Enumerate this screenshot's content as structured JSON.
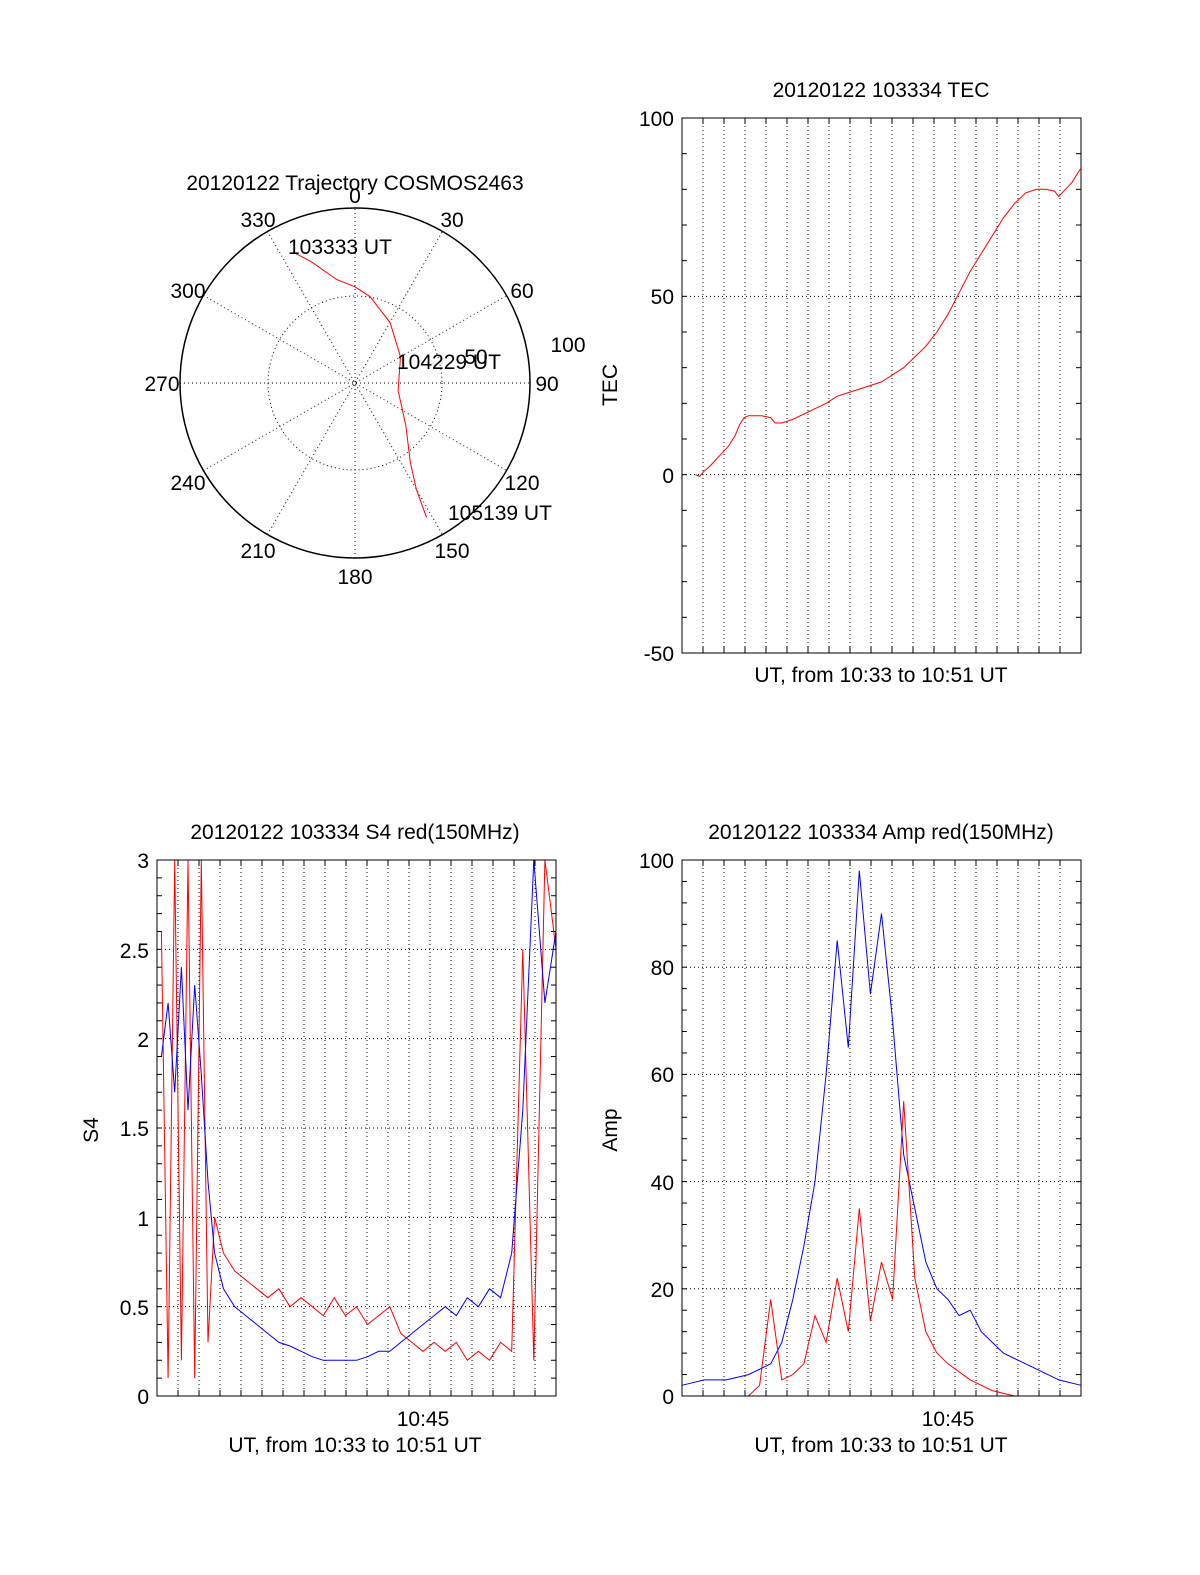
{
  "colors": {
    "red": "#ff0000",
    "blue": "#0000ff",
    "ink": "#000000",
    "background": "#ffffff"
  },
  "chart_data": [
    {
      "type": "polar",
      "title": "20120122 Trajectory COSMOS2463",
      "azimuth_labels": [
        "0",
        "30",
        "60",
        "90",
        "120",
        "150",
        "180",
        "210",
        "240",
        "270",
        "300",
        "330"
      ],
      "radial_labels": [
        "50",
        "100"
      ],
      "start_label": "103333 UT",
      "mid_label": "104229 UT",
      "end_label": "105139 UT",
      "series": [
        {
          "color": "red",
          "points": [
            [
              335,
              82
            ],
            [
              340,
              74
            ],
            [
              350,
              60
            ],
            [
              0,
              55
            ],
            [
              10,
              50
            ],
            [
              30,
              40
            ],
            [
              60,
              30
            ],
            [
              100,
              25
            ],
            [
              130,
              38
            ],
            [
              145,
              55
            ],
            [
              150,
              70
            ],
            [
              152,
              87
            ]
          ]
        }
      ]
    },
    {
      "type": "line",
      "title": "20120122 103334 TEC",
      "xlabel": "UT, from 10:33 to 10:51 UT",
      "ylabel": "TEC",
      "x_range_minutes": [
        0,
        18
      ],
      "ylim": [
        -50,
        100
      ],
      "yticks": [
        "100",
        "50",
        "0",
        "-50"
      ],
      "grid": true,
      "series": [
        {
          "color": "red",
          "x": [
            0.6,
            0.8,
            1.0,
            1.2,
            1.5,
            1.8,
            2.1,
            2.4,
            2.6,
            2.8,
            3.0,
            3.2,
            3.6,
            4.0,
            4.2,
            4.5,
            5.0,
            5.5,
            6.0,
            6.5,
            7.0,
            7.5,
            8.0,
            8.5,
            9.0,
            9.5,
            10.0,
            10.5,
            11.0,
            11.5,
            12.0,
            12.5,
            13.0,
            13.5,
            14.0,
            14.5,
            15.0,
            15.5,
            16.0,
            16.4,
            16.8,
            17.0,
            17.3,
            17.6,
            18.0
          ],
          "y": [
            0,
            -0.5,
            1,
            2,
            4,
            6,
            8,
            11,
            14,
            16,
            16.5,
            16.5,
            16.5,
            16,
            14.5,
            14.5,
            15.5,
            17,
            18.5,
            20,
            22,
            23,
            24,
            25,
            26,
            28,
            30,
            33,
            36,
            40,
            45,
            51,
            57,
            62,
            67,
            72,
            76,
            79,
            80,
            80,
            79.5,
            78,
            80,
            82,
            86
          ]
        }
      ]
    },
    {
      "type": "line",
      "title": "20120122 103334 S4 red(150MHz)",
      "xlabel": "UT, from 10:33 to 10:51 UT",
      "ylabel": "S4",
      "x_range_minutes": [
        0,
        18
      ],
      "ylim": [
        0,
        3
      ],
      "yticks": [
        "3",
        "2.5",
        "2",
        "1.5",
        "1",
        "0.5",
        "0"
      ],
      "xticks": [
        "10:45"
      ],
      "grid": true,
      "series": [
        {
          "color": "red",
          "x": [
            0.2,
            0.5,
            0.8,
            1.1,
            1.4,
            1.7,
            2.0,
            2.3,
            2.6,
            3.0,
            3.5,
            4.0,
            4.5,
            5.0,
            5.5,
            6.0,
            6.5,
            7.0,
            7.5,
            8.0,
            8.5,
            9.0,
            9.5,
            10.0,
            10.5,
            11.0,
            11.5,
            12.0,
            12.5,
            13.0,
            13.5,
            14.0,
            14.5,
            15.0,
            15.5,
            16.0,
            16.5,
            17.0,
            17.5,
            18.0
          ],
          "y": [
            2.6,
            0.1,
            3.0,
            0.2,
            3.0,
            0.1,
            3.0,
            0.3,
            1.0,
            0.8,
            0.7,
            0.65,
            0.6,
            0.55,
            0.6,
            0.5,
            0.55,
            0.5,
            0.45,
            0.55,
            0.45,
            0.5,
            0.4,
            0.45,
            0.5,
            0.35,
            0.3,
            0.25,
            0.3,
            0.25,
            0.3,
            0.2,
            0.25,
            0.2,
            0.3,
            0.25,
            2.5,
            0.2,
            3.0,
            2.5
          ]
        },
        {
          "color": "blue",
          "x": [
            0.2,
            0.5,
            0.8,
            1.1,
            1.4,
            1.7,
            2.0,
            2.3,
            2.6,
            3.0,
            3.5,
            4.0,
            4.5,
            5.0,
            5.5,
            6.0,
            6.5,
            7.0,
            7.5,
            8.0,
            8.5,
            9.0,
            9.5,
            10.0,
            10.5,
            11.0,
            11.5,
            12.0,
            12.5,
            13.0,
            13.5,
            14.0,
            14.5,
            15.0,
            15.5,
            16.0,
            16.5,
            17.0,
            17.5,
            18.0
          ],
          "y": [
            1.9,
            2.2,
            1.7,
            2.4,
            1.6,
            2.3,
            1.8,
            1.2,
            0.8,
            0.6,
            0.5,
            0.45,
            0.4,
            0.35,
            0.3,
            0.28,
            0.25,
            0.22,
            0.2,
            0.2,
            0.2,
            0.2,
            0.22,
            0.25,
            0.25,
            0.3,
            0.35,
            0.4,
            0.45,
            0.5,
            0.45,
            0.55,
            0.5,
            0.6,
            0.55,
            0.8,
            1.6,
            3.0,
            2.2,
            2.6
          ]
        }
      ]
    },
    {
      "type": "line",
      "title": "20120122 103334 Amp red(150MHz)",
      "xlabel": "UT, from 10:33 to 10:51 UT",
      "ylabel": "Amp",
      "x_range_minutes": [
        0,
        18
      ],
      "ylim": [
        0,
        100
      ],
      "yticks": [
        "100",
        "80",
        "60",
        "40",
        "20",
        "0"
      ],
      "xticks": [
        "10:45"
      ],
      "grid": true,
      "series": [
        {
          "color": "blue",
          "x": [
            0,
            1,
            2,
            3,
            4,
            4.5,
            5,
            5.5,
            6,
            6.5,
            7,
            7.5,
            8,
            8.5,
            9,
            9.5,
            10,
            10.5,
            11,
            11.5,
            12,
            12.5,
            13,
            13.5,
            14,
            14.5,
            15,
            15.5,
            16,
            16.5,
            17,
            18
          ],
          "y": [
            2,
            3,
            3,
            4,
            6,
            10,
            18,
            28,
            40,
            60,
            85,
            65,
            98,
            75,
            90,
            70,
            45,
            35,
            25,
            20,
            18,
            15,
            16,
            12,
            10,
            8,
            7,
            6,
            5,
            4,
            3,
            2
          ]
        },
        {
          "color": "red",
          "x": [
            0,
            2,
            3,
            3.5,
            4,
            4.5,
            5,
            5.5,
            6,
            6.5,
            7,
            7.5,
            8,
            8.5,
            9,
            9.5,
            10,
            10.5,
            11,
            11.5,
            12,
            13,
            14,
            15,
            18
          ],
          "y": [
            0,
            0,
            0,
            2,
            18,
            3,
            4,
            6,
            15,
            10,
            22,
            12,
            35,
            14,
            25,
            18,
            55,
            22,
            12,
            8,
            6,
            3,
            1,
            0,
            0
          ]
        }
      ]
    }
  ]
}
